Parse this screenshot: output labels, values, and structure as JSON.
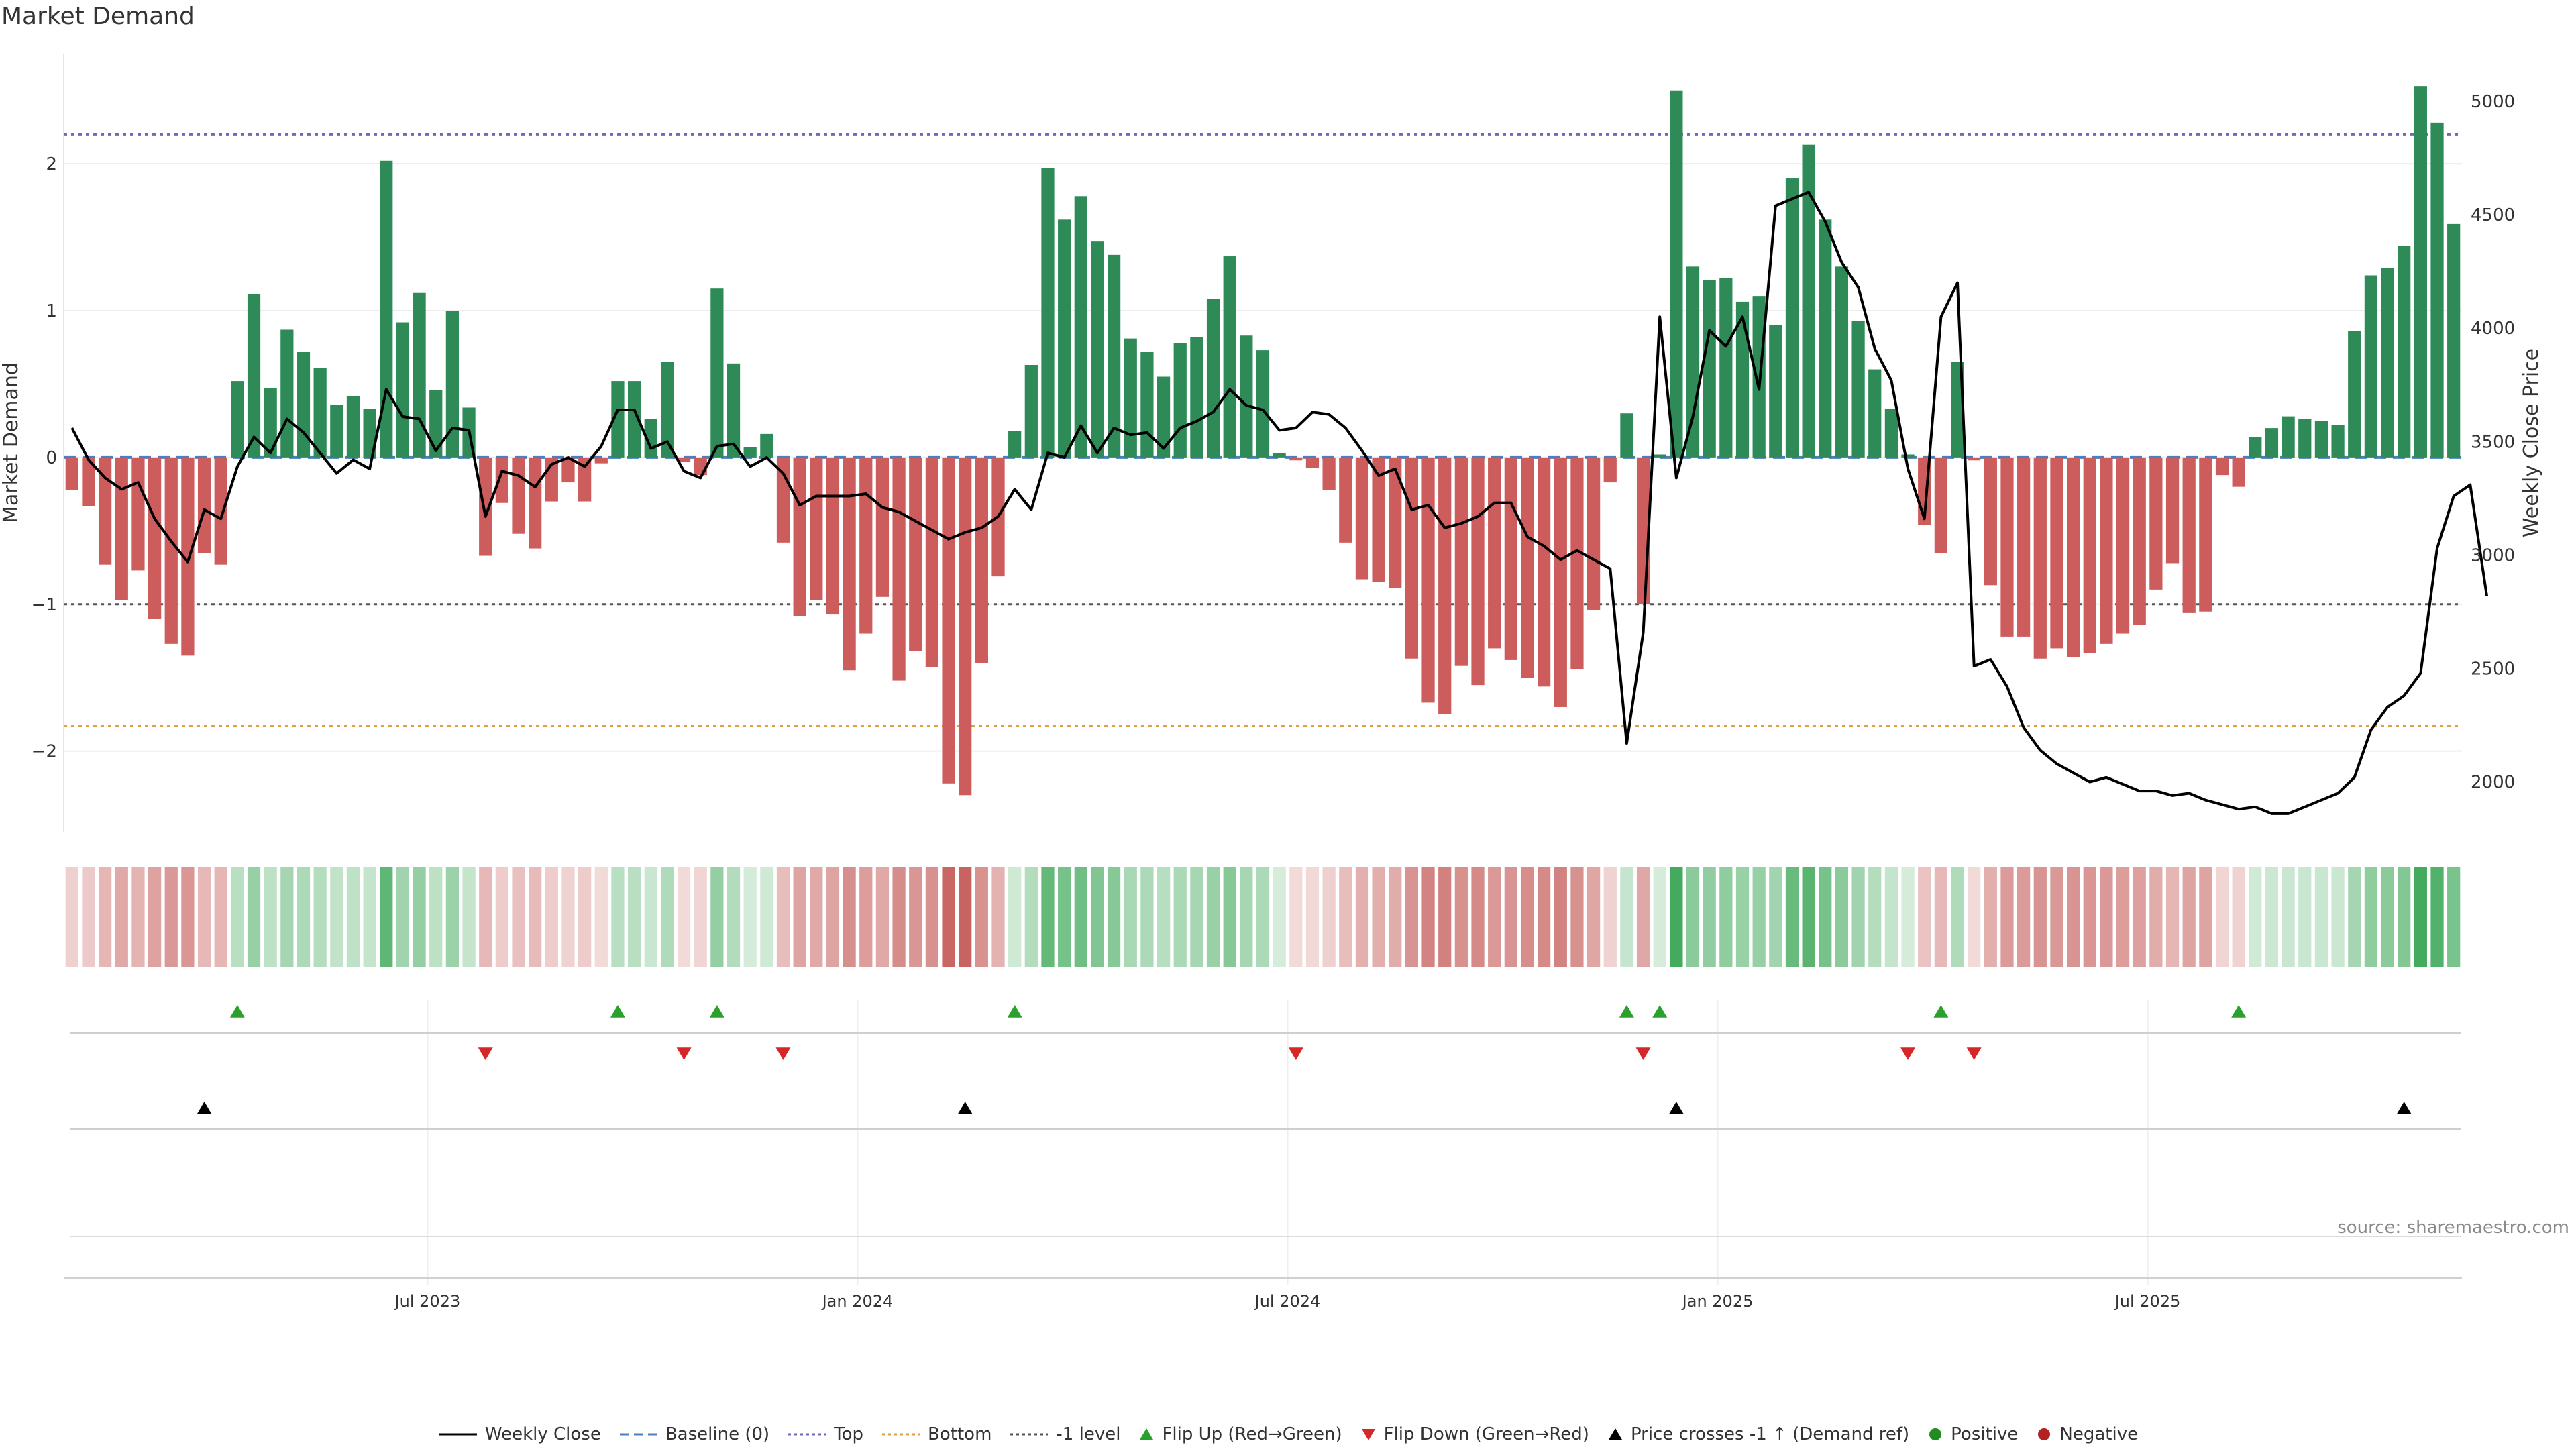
{
  "title": "Market Demand",
  "source": "source: sharemaestro.com",
  "legend": [
    {
      "label": "Weekly Close",
      "symbol": "line-solid",
      "color": "#000000"
    },
    {
      "label": "Baseline (0)",
      "symbol": "line-dashed",
      "color": "#4a7fc0"
    },
    {
      "label": "Top",
      "symbol": "line-dotted",
      "color": "#6a6ab8"
    },
    {
      "label": "Bottom",
      "symbol": "line-dotted",
      "color": "#e0a040"
    },
    {
      "label": "-1 level",
      "symbol": "line-dotted",
      "color": "#555555"
    },
    {
      "label": "Flip Up (Red→Green)",
      "symbol": "triangle-up",
      "color": "#2ca02c"
    },
    {
      "label": "Flip Down (Green→Red)",
      "symbol": "triangle-down",
      "color": "#d62728"
    },
    {
      "label": "Price crosses -1 ↑ (Demand ref)",
      "symbol": "triangle-up",
      "color": "#000000"
    },
    {
      "label": "Positive",
      "symbol": "circle",
      "color": "#228b22"
    },
    {
      "label": "Negative",
      "symbol": "circle",
      "color": "#b22222"
    }
  ],
  "colors": {
    "positive": "#2e8b57",
    "negative": "#cd5c5c",
    "price": "#000000",
    "top": "#6a6ab8",
    "bottom": "#e0a040",
    "minus1": "#555555",
    "baseline": "#4a7fc0",
    "flip_up": "#2ca02c",
    "flip_down": "#d62728",
    "cross": "#000000"
  },
  "chart_data": {
    "type": "bar",
    "title": "Market Demand",
    "ylabel": "Market Demand",
    "y2label": "Weekly Close Price",
    "ylim": [
      -2.55,
      2.75
    ],
    "y2lim": [
      1780,
      5210
    ],
    "yticks": [
      -2,
      -1,
      0,
      1,
      2
    ],
    "y2ticks": [
      2000,
      2500,
      3000,
      3500,
      4000,
      4500,
      5000
    ],
    "x_tick_labels": [
      {
        "label": "Jul 2023",
        "index": 22
      },
      {
        "label": "Jan 2024",
        "index": 48
      },
      {
        "label": "Jul 2024",
        "index": 74
      },
      {
        "label": "Jan 2025",
        "index": 100
      },
      {
        "label": "Jul 2025",
        "index": 126
      }
    ],
    "reference_lines": {
      "top": 2.2,
      "bottom": -1.83,
      "minus1": -1.0,
      "baseline": 0
    },
    "demand": [
      -0.22,
      -0.33,
      -0.73,
      -0.97,
      -0.77,
      -1.1,
      -1.27,
      -1.35,
      -0.65,
      -0.73,
      0.52,
      1.11,
      0.47,
      0.87,
      0.72,
      0.61,
      0.36,
      0.42,
      0.33,
      2.02,
      0.92,
      1.12,
      0.46,
      1.0,
      0.34,
      -0.67,
      -0.31,
      -0.52,
      -0.62,
      -0.3,
      -0.17,
      -0.3,
      -0.04,
      0.52,
      0.52,
      0.26,
      0.65,
      -0.03,
      -0.12,
      1.15,
      0.64,
      0.07,
      0.16,
      -0.58,
      -1.08,
      -0.97,
      -1.07,
      -1.45,
      -1.2,
      -0.95,
      -1.52,
      -1.32,
      -1.43,
      -2.22,
      -2.3,
      -1.4,
      -0.81,
      0.18,
      0.63,
      1.97,
      1.62,
      1.78,
      1.47,
      1.38,
      0.81,
      0.72,
      0.55,
      0.78,
      0.82,
      1.08,
      1.37,
      0.83,
      0.73,
      0.03,
      -0.02,
      -0.07,
      -0.22,
      -0.58,
      -0.83,
      -0.85,
      -0.89,
      -1.37,
      -1.67,
      -1.75,
      -1.42,
      -1.55,
      -1.3,
      -1.38,
      -1.5,
      -1.56,
      -1.7,
      -1.44,
      -1.04,
      -0.17,
      0.3,
      -1.0,
      0.02,
      2.5,
      1.3,
      1.21,
      1.22,
      1.06,
      1.1,
      0.9,
      1.9,
      2.13,
      1.62,
      1.3,
      0.93,
      0.6,
      0.33,
      0.02,
      -0.46,
      -0.65,
      0.65,
      -0.02,
      -0.87,
      -1.22,
      -1.22,
      -1.37,
      -1.3,
      -1.36,
      -1.33,
      -1.27,
      -1.2,
      -1.14,
      -0.9,
      -0.72,
      -1.06,
      -1.05,
      -0.12,
      -0.2,
      0.14,
      0.2,
      0.28,
      0.26,
      0.25,
      0.22,
      0.86,
      1.24,
      1.29,
      1.44,
      2.53,
      2.28,
      1.59
    ],
    "close": [
      3560,
      3420,
      3340,
      3290,
      3320,
      3160,
      3060,
      2970,
      3200,
      3160,
      3390,
      3520,
      3450,
      3600,
      3540,
      3450,
      3360,
      3420,
      3380,
      3730,
      3610,
      3600,
      3460,
      3560,
      3550,
      3170,
      3370,
      3350,
      3300,
      3400,
      3430,
      3390,
      3480,
      3640,
      3640,
      3470,
      3500,
      3370,
      3340,
      3480,
      3490,
      3390,
      3430,
      3360,
      3220,
      3260,
      3260,
      3260,
      3270,
      3210,
      3190,
      3150,
      3110,
      3070,
      3100,
      3120,
      3170,
      3290,
      3200,
      3450,
      3430,
      3570,
      3450,
      3560,
      3530,
      3540,
      3470,
      3560,
      3590,
      3630,
      3730,
      3660,
      3640,
      3550,
      3560,
      3630,
      3620,
      3560,
      3460,
      3350,
      3380,
      3200,
      3220,
      3120,
      3140,
      3170,
      3230,
      3230,
      3080,
      3040,
      2980,
      3020,
      2980,
      2940,
      2170,
      2660,
      4050,
      3340,
      3610,
      3990,
      3920,
      4050,
      3730,
      4540,
      4570,
      4600,
      4470,
      4290,
      4180,
      3910,
      3770,
      3380,
      3160,
      4050,
      4200,
      2510,
      2540,
      2420,
      2240,
      2140,
      2080,
      2040,
      2000,
      2020,
      1990,
      1960,
      1960,
      1940,
      1950,
      1920,
      1900,
      1880,
      1890,
      1860,
      1860,
      1890,
      1920,
      1950,
      2020,
      2230,
      2330,
      2380,
      2480,
      3030,
      3260,
      3310,
      2820
    ],
    "flip_up_indices": [
      10,
      33,
      39,
      57,
      94,
      96,
      113,
      131
    ],
    "flip_down_indices": [
      25,
      37,
      43,
      74,
      95,
      111,
      115
    ],
    "price_cross_indices": [
      8,
      54,
      97,
      141
    ]
  }
}
